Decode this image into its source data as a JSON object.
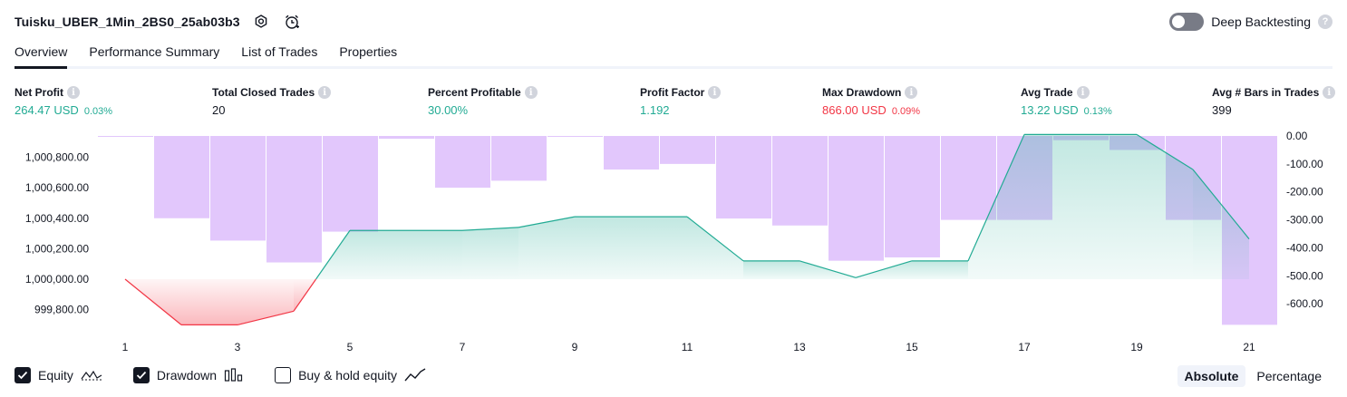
{
  "header": {
    "title": "Tuisku_UBER_1Min_2BS0_25ab03b3",
    "deep_backtesting_label": "Deep Backtesting",
    "help_glyph": "?"
  },
  "tabs": [
    "Overview",
    "Performance Summary",
    "List of Trades",
    "Properties"
  ],
  "metrics": [
    {
      "label": "Net Profit",
      "value": "264.47 USD",
      "pct": "0.03%",
      "color": "green"
    },
    {
      "label": "Total Closed Trades",
      "value": "20",
      "pct": "",
      "color": "dark"
    },
    {
      "label": "Percent Profitable",
      "value": "30.00%",
      "pct": "",
      "color": "green"
    },
    {
      "label": "Profit Factor",
      "value": "1.192",
      "pct": "",
      "color": "green"
    },
    {
      "label": "Max Drawdown",
      "value": "866.00 USD",
      "pct": "0.09%",
      "color": "red"
    },
    {
      "label": "Avg Trade",
      "value": "13.22 USD",
      "pct": "0.13%",
      "color": "green"
    },
    {
      "label": "Avg # Bars in Trades",
      "value": "399",
      "pct": "",
      "color": "dark"
    }
  ],
  "legend": {
    "equity_label": "Equity",
    "drawdown_label": "Drawdown",
    "buyhold_label": "Buy & hold equity"
  },
  "mode": {
    "absolute_label": "Absolute",
    "percentage_label": "Percentage"
  },
  "colors": {
    "equity_line": "#22ab94",
    "equity_fill": "#22ab94",
    "loss_line": "#f23645",
    "drawdown_bar": "#e0c4fc",
    "axis_text": "#131722"
  },
  "chart_data": {
    "type": "line",
    "x": [
      1,
      2,
      3,
      4,
      5,
      6,
      7,
      8,
      9,
      10,
      11,
      12,
      13,
      14,
      15,
      16,
      17,
      18,
      19,
      20,
      21
    ],
    "x_ticks": [
      "1",
      "3",
      "5",
      "7",
      "9",
      "11",
      "13",
      "15",
      "17",
      "19",
      "21"
    ],
    "baseline": 1000000,
    "series": [
      {
        "axis": "left",
        "values": [
          1000000,
          999700,
          999700,
          999790,
          1000320,
          1000320,
          1000320,
          1000340,
          1000410,
          1000410,
          1000410,
          1000120,
          1000120,
          1000010,
          1000120,
          1000120,
          1000950,
          1000950,
          1000950,
          1000720,
          1000264.47
        ]
      },
      {
        "axis": "right",
        "type": "bar",
        "values": [
          0,
          -294,
          -374,
          -452,
          -342,
          -10,
          -185,
          -160,
          0,
          -120,
          -100,
          -295,
          -320,
          -446,
          -434,
          -300,
          -300,
          -15,
          -50,
          -300,
          -675
        ]
      }
    ],
    "left_axis": {
      "ticks": [
        "1,000,800.00",
        "1,000,600.00",
        "1,000,400.00",
        "1,000,200.00",
        "1,000,000.00",
        "999,800.00"
      ],
      "tick_values": [
        1000800,
        1000600,
        1000400,
        1000200,
        1000000,
        999800
      ]
    },
    "right_axis": {
      "ticks": [
        "0.00",
        "-100.00",
        "-200.00",
        "-300.00",
        "-400.00",
        "-500.00",
        "-600.00"
      ],
      "tick_values": [
        0,
        -100,
        -200,
        -300,
        -400,
        -500,
        -600
      ]
    }
  }
}
